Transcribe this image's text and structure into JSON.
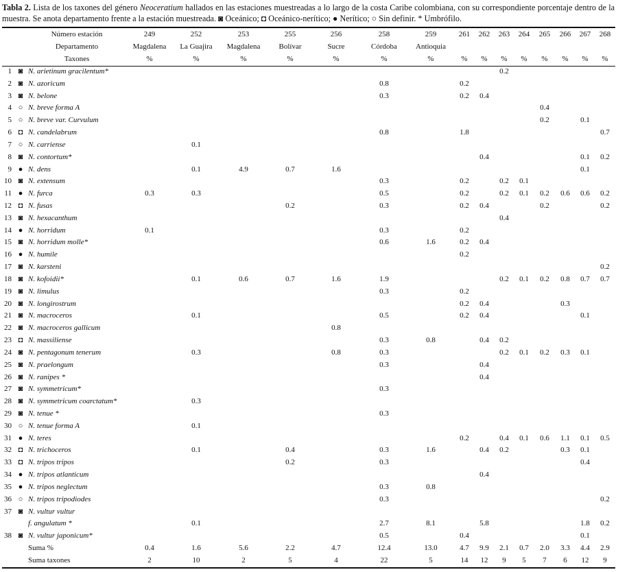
{
  "caption": {
    "label": "Tabla 2.",
    "text_before": "Lista de los taxones del género",
    "genus": "Neoceratium",
    "text_after": "hallados en las estaciones muestreadas a lo largo de la costa Caribe colombiana, con su correspondiente porcentaje dentro de la muestra. Se anota departamento frente a la estación muestreada. ◙ Oceánico; ◘ Oceánico-nerítico; ● Nerítico; ○ Sin definir. * Umbrófilo."
  },
  "table": {
    "header": {
      "station_label": "Número estación",
      "department_label": "Departamento",
      "taxa_label": "Taxones",
      "stations": [
        249,
        252,
        253,
        255,
        256,
        258,
        259,
        261,
        262,
        263,
        264,
        265,
        266,
        267,
        268
      ],
      "departments": [
        "Magdalena",
        "La Guajira",
        "Magdalena",
        "Bolívar",
        "Sucre",
        "Córdoba",
        "Antioquia",
        null,
        null,
        null,
        null,
        null,
        null,
        null,
        null
      ],
      "units": [
        "%",
        "%",
        "%",
        "%",
        "%",
        "%",
        "%",
        "%",
        "%",
        "%",
        "%",
        "%",
        "%",
        "%",
        "%"
      ]
    },
    "rows": [
      {
        "number": "1",
        "symbol": "◙",
        "name": "N. arietinum gracilentum*",
        "values": [
          null,
          null,
          null,
          null,
          null,
          null,
          null,
          null,
          null,
          "0.2",
          null,
          null,
          null,
          null,
          null
        ]
      },
      {
        "number": "2",
        "symbol": "◙",
        "name": "N. azoricum",
        "values": [
          null,
          null,
          null,
          null,
          null,
          "0.8",
          null,
          "0.2",
          null,
          null,
          null,
          null,
          null,
          null,
          null
        ]
      },
      {
        "number": "3",
        "symbol": "◙",
        "name": "N. belone",
        "values": [
          null,
          null,
          null,
          null,
          null,
          "0.3",
          null,
          "0.2",
          "0.4",
          null,
          null,
          null,
          null,
          null,
          null
        ]
      },
      {
        "number": "4",
        "symbol": "○",
        "name": "N. breve forma A",
        "values": [
          null,
          null,
          null,
          null,
          null,
          null,
          null,
          null,
          null,
          null,
          null,
          "0.4",
          null,
          null,
          null
        ]
      },
      {
        "number": "5",
        "symbol": "○",
        "name": "N. breve var. Curvulum",
        "values": [
          null,
          null,
          null,
          null,
          null,
          null,
          null,
          null,
          null,
          null,
          null,
          "0.2",
          null,
          "0.1",
          null
        ]
      },
      {
        "number": "6",
        "symbol": "◘",
        "name": "N. candelabrum",
        "values": [
          null,
          null,
          null,
          null,
          null,
          "0.8",
          null,
          "1.8",
          null,
          null,
          null,
          null,
          null,
          null,
          "0.7"
        ]
      },
      {
        "number": "7",
        "symbol": "○",
        "name": "N. carriense",
        "values": [
          null,
          "0.1",
          null,
          null,
          null,
          null,
          null,
          null,
          null,
          null,
          null,
          null,
          null,
          null,
          null
        ]
      },
      {
        "number": "8",
        "symbol": "◙",
        "name": "N. contortum*",
        "values": [
          null,
          null,
          null,
          null,
          null,
          null,
          null,
          null,
          "0.4",
          null,
          null,
          null,
          null,
          "0.1",
          "0.2"
        ]
      },
      {
        "number": "9",
        "symbol": "●",
        "name": "N. dens",
        "values": [
          null,
          "0.1",
          "4.9",
          "0.7",
          "1.6",
          null,
          null,
          null,
          null,
          null,
          null,
          null,
          null,
          "0.1",
          null
        ]
      },
      {
        "number": "10",
        "symbol": "◙",
        "name": "N. extensum",
        "values": [
          null,
          null,
          null,
          null,
          null,
          "0.3",
          null,
          "0.2",
          null,
          "0.2",
          "0.1",
          null,
          null,
          null,
          null
        ]
      },
      {
        "number": "11",
        "symbol": "●",
        "name": "N. furca",
        "values": [
          "0.3",
          "0.3",
          null,
          null,
          null,
          "0.5",
          null,
          "0.2",
          null,
          "0.2",
          "0.1",
          "0.2",
          "0.6",
          "0.6",
          "0.2"
        ]
      },
      {
        "number": "12",
        "symbol": "◘",
        "name": "N. fusas",
        "values": [
          null,
          null,
          null,
          "0.2",
          null,
          "0.3",
          null,
          "0.2",
          "0.4",
          null,
          null,
          "0.2",
          null,
          null,
          "0.2"
        ]
      },
      {
        "number": "13",
        "symbol": "◙",
        "name": "N. hexacanthum",
        "values": [
          null,
          null,
          null,
          null,
          null,
          null,
          null,
          null,
          null,
          "0.4",
          null,
          null,
          null,
          null,
          null
        ]
      },
      {
        "number": "14",
        "symbol": "●",
        "name": "N. horridum",
        "values": [
          "0.1",
          null,
          null,
          null,
          null,
          "0.3",
          null,
          "0.2",
          null,
          null,
          null,
          null,
          null,
          null,
          null
        ]
      },
      {
        "number": "15",
        "symbol": "◙",
        "name": "N. horridum molle*",
        "values": [
          null,
          null,
          null,
          null,
          null,
          "0.6",
          "1.6",
          "0.2",
          "0.4",
          null,
          null,
          null,
          null,
          null,
          null
        ]
      },
      {
        "number": "16",
        "symbol": "●",
        "name": "N. humile",
        "values": [
          null,
          null,
          null,
          null,
          null,
          null,
          null,
          "0.2",
          null,
          null,
          null,
          null,
          null,
          null,
          null
        ]
      },
      {
        "number": "17",
        "symbol": "◙",
        "name": "N. karsteni",
        "values": [
          null,
          null,
          null,
          null,
          null,
          null,
          null,
          null,
          null,
          null,
          null,
          null,
          null,
          null,
          "0.2"
        ]
      },
      {
        "number": "18",
        "symbol": "◙",
        "name": "N. kofoidii*",
        "values": [
          null,
          "0.1",
          "0.6",
          "0.7",
          "1.6",
          "1.9",
          null,
          null,
          null,
          "0.2",
          "0.1",
          "0.2",
          "0.8",
          "0.7",
          "0.7"
        ]
      },
      {
        "number": "19",
        "symbol": "◙",
        "name": "N. limulus",
        "values": [
          null,
          null,
          null,
          null,
          null,
          "0.3",
          null,
          "0.2",
          null,
          null,
          null,
          null,
          null,
          null,
          null
        ]
      },
      {
        "number": "20",
        "symbol": "◙",
        "name": "N. longirostrum",
        "values": [
          null,
          null,
          null,
          null,
          null,
          null,
          null,
          "0.2",
          "0.4",
          null,
          null,
          null,
          "0.3",
          null,
          null
        ]
      },
      {
        "number": "21",
        "symbol": "◙",
        "name": "N. macroceros",
        "values": [
          null,
          "0.1",
          null,
          null,
          null,
          "0.5",
          null,
          "0.2",
          "0.4",
          null,
          null,
          null,
          null,
          "0.1",
          null
        ]
      },
      {
        "number": "22",
        "symbol": "◙",
        "name": "N. macroceros gallicum",
        "values": [
          null,
          null,
          null,
          null,
          "0.8",
          null,
          null,
          null,
          null,
          null,
          null,
          null,
          null,
          null,
          null
        ]
      },
      {
        "number": "23",
        "symbol": "◘",
        "name": "N. massiliense",
        "values": [
          null,
          null,
          null,
          null,
          null,
          "0.3",
          "0.8",
          null,
          "0.4",
          "0.2",
          null,
          null,
          null,
          null,
          null
        ]
      },
      {
        "number": "24",
        "symbol": "◙",
        "name": "N. pentagonum tenerum",
        "values": [
          null,
          "0.3",
          null,
          null,
          "0.8",
          "0.3",
          null,
          null,
          null,
          "0.2",
          "0.1",
          "0.2",
          "0.3",
          "0.1",
          null
        ]
      },
      {
        "number": "25",
        "symbol": "◙",
        "name": "N. praelongum",
        "values": [
          null,
          null,
          null,
          null,
          null,
          "0.3",
          null,
          null,
          "0.4",
          null,
          null,
          null,
          null,
          null,
          null
        ]
      },
      {
        "number": "26",
        "symbol": "◙",
        "name": "N. ranipes *",
        "values": [
          null,
          null,
          null,
          null,
          null,
          null,
          null,
          null,
          "0.4",
          null,
          null,
          null,
          null,
          null,
          null
        ]
      },
      {
        "number": "27",
        "symbol": "◙",
        "name": "N. symmetricum*",
        "values": [
          null,
          null,
          null,
          null,
          null,
          "0.3",
          null,
          null,
          null,
          null,
          null,
          null,
          null,
          null,
          null
        ]
      },
      {
        "number": "28",
        "symbol": "◙",
        "name": "N. symmetricum coarctatum*",
        "values": [
          null,
          "0.3",
          null,
          null,
          null,
          null,
          null,
          null,
          null,
          null,
          null,
          null,
          null,
          null,
          null
        ]
      },
      {
        "number": "29",
        "symbol": "◙",
        "name": "N. tenue *",
        "values": [
          null,
          null,
          null,
          null,
          null,
          "0.3",
          null,
          null,
          null,
          null,
          null,
          null,
          null,
          null,
          null
        ]
      },
      {
        "number": "30",
        "symbol": "○",
        "name": "N. tenue forma A",
        "values": [
          null,
          "0.1",
          null,
          null,
          null,
          null,
          null,
          null,
          null,
          null,
          null,
          null,
          null,
          null,
          null
        ]
      },
      {
        "number": "31",
        "symbol": "●",
        "name": "N. teres",
        "values": [
          null,
          null,
          null,
          null,
          null,
          null,
          null,
          "0.2",
          null,
          "0.4",
          "0.1",
          "0.6",
          "1.1",
          "0.1",
          "0.5"
        ]
      },
      {
        "number": "32",
        "symbol": "◘",
        "name": "N. trichoceros",
        "values": [
          null,
          "0.1",
          null,
          "0.4",
          null,
          "0.3",
          "1.6",
          null,
          "0.4",
          "0.2",
          null,
          null,
          "0.3",
          "0.1",
          null
        ]
      },
      {
        "number": "33",
        "symbol": "◘",
        "name": "N. tripos tripos",
        "values": [
          null,
          null,
          null,
          "0.2",
          null,
          "0.3",
          null,
          null,
          null,
          null,
          null,
          null,
          null,
          "0.4",
          null
        ]
      },
      {
        "number": "34",
        "symbol": "●",
        "name": "N. tripos atlanticum",
        "values": [
          null,
          null,
          null,
          null,
          null,
          null,
          null,
          null,
          "0.4",
          null,
          null,
          null,
          null,
          null,
          null
        ]
      },
      {
        "number": "35",
        "symbol": "●",
        "name": "N. tripos neglectum",
        "values": [
          null,
          null,
          null,
          null,
          null,
          "0.3",
          "0.8",
          null,
          null,
          null,
          null,
          null,
          null,
          null,
          null
        ]
      },
      {
        "number": "36",
        "symbol": "○",
        "name": "N. tripos tripodiodes",
        "values": [
          null,
          null,
          null,
          null,
          null,
          "0.3",
          null,
          null,
          null,
          null,
          null,
          null,
          null,
          null,
          "0.2"
        ]
      },
      {
        "number": "37",
        "symbol": "◙",
        "name": "N. vultur vultur",
        "values": [
          null,
          null,
          null,
          null,
          null,
          null,
          null,
          null,
          null,
          null,
          null,
          null,
          null,
          null,
          null
        ]
      },
      {
        "number": null,
        "symbol": null,
        "name": "f. angulatum *",
        "values": [
          null,
          "0.1",
          null,
          null,
          null,
          "2.7",
          "8.1",
          null,
          "5.8",
          null,
          null,
          null,
          null,
          "1.8",
          "0.2"
        ]
      },
      {
        "number": "38",
        "symbol": "◙",
        "name": "N. vultur japonicum*",
        "values": [
          null,
          null,
          null,
          null,
          null,
          "0.5",
          null,
          "0.4",
          null,
          null,
          null,
          null,
          null,
          "0.1",
          null
        ]
      }
    ],
    "totals": [
      {
        "label": "Suma %",
        "values": [
          "0.4",
          "1.6",
          "5.6",
          "2.2",
          "4.7",
          "12.4",
          "13.0",
          "4.7",
          "9.9",
          "2.1",
          "0.7",
          "2.0",
          "3.3",
          "4.4",
          "2.9"
        ]
      },
      {
        "label": "Suma taxones",
        "values": [
          "2",
          "10",
          "2",
          "5",
          "4",
          "22",
          "5",
          "14",
          "12",
          "9",
          "5",
          "7",
          "6",
          "12",
          "9"
        ]
      }
    ]
  }
}
